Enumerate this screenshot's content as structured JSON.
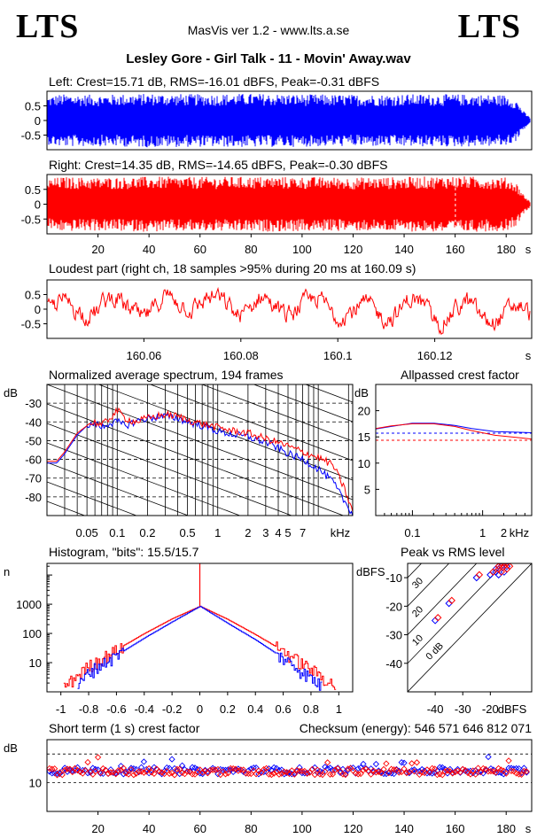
{
  "header": {
    "logo_left": "LTS",
    "logo_right": "LTS",
    "app_title": "MasVis ver 1.2 - www.lts.a.se",
    "file_title": "Lesley Gore - Girl Talk - 11 - Movin' Away.wav"
  },
  "colors": {
    "left": "#0000ff",
    "right": "#ff0000",
    "axis": "#000000",
    "grid": "#000000"
  },
  "chart_data": [
    {
      "id": "left-waveform",
      "type": "area",
      "title": "Left: Crest=15.71 dB, RMS=-16.01 dBFS, Peak=-0.31 dBFS",
      "ylim": [
        -1,
        1
      ],
      "xlim": [
        0,
        190
      ],
      "yticks": [
        "0.5",
        "0",
        "-0.5"
      ],
      "ytick_values": [
        0.5,
        0,
        -0.5
      ],
      "series": [
        {
          "envelope": [
            [
              0,
              0.82
            ],
            [
              5,
              0.9
            ],
            [
              20,
              0.88
            ],
            [
              40,
              0.92
            ],
            [
              60,
              0.9
            ],
            [
              80,
              0.92
            ],
            [
              100,
              0.9
            ],
            [
              120,
              0.88
            ],
            [
              140,
              0.9
            ],
            [
              160,
              0.9
            ],
            [
              180,
              0.88
            ],
            [
              184,
              0.7
            ],
            [
              187,
              0.3
            ],
            [
              190,
              0.05
            ]
          ]
        }
      ]
    },
    {
      "id": "right-waveform",
      "type": "area",
      "title": "Right: Crest=14.35 dB, RMS=-14.65 dBFS, Peak=-0.30 dBFS",
      "ylim": [
        -1,
        1
      ],
      "xlim": [
        0,
        190
      ],
      "yticks": [
        "0.5",
        "0",
        "-0.5"
      ],
      "ytick_values": [
        0.5,
        0,
        -0.5
      ],
      "xticks": [
        "20",
        "40",
        "60",
        "80",
        "100",
        "120",
        "140",
        "160",
        "180"
      ],
      "xtick_values": [
        20,
        40,
        60,
        80,
        100,
        120,
        140,
        160,
        180
      ],
      "xunit": "s",
      "series": [
        {
          "envelope": [
            [
              0,
              0.82
            ],
            [
              5,
              0.92
            ],
            [
              20,
              0.9
            ],
            [
              40,
              0.93
            ],
            [
              60,
              0.92
            ],
            [
              80,
              0.93
            ],
            [
              100,
              0.92
            ],
            [
              120,
              0.9
            ],
            [
              140,
              0.92
            ],
            [
              160,
              0.95
            ],
            [
              180,
              0.9
            ],
            [
              184,
              0.72
            ],
            [
              187,
              0.3
            ],
            [
              190,
              0.05
            ]
          ]
        }
      ]
    },
    {
      "id": "loudest-part",
      "type": "line",
      "title": "Loudest part (right ch, 18 samples >95% during 20 ms at 160.09 s)",
      "ylim": [
        -1,
        1
      ],
      "xlim": [
        160.04,
        160.14
      ],
      "yticks": [
        "0.5",
        "0",
        "-0.5"
      ],
      "ytick_values": [
        0.5,
        0,
        -0.5
      ],
      "xticks": [
        "160.06",
        "160.08",
        "160.1",
        "160.12"
      ],
      "xtick_values": [
        160.06,
        160.08,
        160.1,
        160.12
      ],
      "xunit": "s"
    },
    {
      "id": "spectrum",
      "type": "line",
      "title": "Normalized average spectrum, 194 frames",
      "ylabel": "dB",
      "xlabel": "kHz",
      "xscale": "log",
      "xlim": [
        0.02,
        22
      ],
      "ylim": [
        -90,
        -20
      ],
      "yticks": [
        "-30",
        "-40",
        "-50",
        "-60",
        "-70",
        "-80"
      ],
      "ytick_values": [
        -30,
        -40,
        -50,
        -60,
        -70,
        -80
      ],
      "xticks": [
        "0.05",
        "0.1",
        "0.2",
        "0.5",
        "1",
        "2",
        "3",
        "4",
        "5",
        "7"
      ],
      "xtick_values": [
        0.05,
        0.1,
        0.2,
        0.5,
        1,
        2,
        3,
        4,
        5,
        7
      ],
      "series": [
        {
          "channel": "left",
          "points": [
            [
              0.02,
              -62
            ],
            [
              0.025,
              -62
            ],
            [
              0.03,
              -57
            ],
            [
              0.04,
              -47
            ],
            [
              0.05,
              -42
            ],
            [
              0.06,
              -41
            ],
            [
              0.07,
              -43
            ],
            [
              0.08,
              -41
            ],
            [
              0.1,
              -40
            ],
            [
              0.12,
              -42
            ],
            [
              0.15,
              -40
            ],
            [
              0.2,
              -38
            ],
            [
              0.3,
              -37
            ],
            [
              0.4,
              -38
            ],
            [
              0.5,
              -40
            ],
            [
              0.7,
              -42
            ],
            [
              1,
              -45
            ],
            [
              1.5,
              -47
            ],
            [
              2,
              -48
            ],
            [
              3,
              -51
            ],
            [
              4,
              -54
            ],
            [
              5,
              -57
            ],
            [
              7,
              -60
            ],
            [
              10,
              -65
            ],
            [
              14,
              -72
            ],
            [
              18,
              -82
            ],
            [
              22,
              -89
            ]
          ]
        },
        {
          "channel": "right",
          "points": [
            [
              0.02,
              -61
            ],
            [
              0.025,
              -61
            ],
            [
              0.03,
              -56
            ],
            [
              0.04,
              -46
            ],
            [
              0.05,
              -42
            ],
            [
              0.06,
              -40
            ],
            [
              0.07,
              -42
            ],
            [
              0.08,
              -39
            ],
            [
              0.1,
              -34
            ],
            [
              0.12,
              -38
            ],
            [
              0.15,
              -40
            ],
            [
              0.2,
              -38
            ],
            [
              0.3,
              -36
            ],
            [
              0.4,
              -37
            ],
            [
              0.5,
              -39
            ],
            [
              0.7,
              -41
            ],
            [
              1,
              -43
            ],
            [
              1.5,
              -45
            ],
            [
              2,
              -46
            ],
            [
              3,
              -49
            ],
            [
              4,
              -51
            ],
            [
              5,
              -53
            ],
            [
              7,
              -56
            ],
            [
              10,
              -59
            ],
            [
              14,
              -63
            ],
            [
              18,
              -75
            ],
            [
              22,
              -88
            ]
          ]
        }
      ]
    },
    {
      "id": "allpassed-crest",
      "type": "line",
      "title": "Allpassed crest factor",
      "ylabel": "dB",
      "xlabel": "kHz",
      "xscale": "log",
      "xlim": [
        0.03,
        5
      ],
      "ylim": [
        0,
        25
      ],
      "yticks": [
        "20",
        "15",
        "10",
        "5"
      ],
      "ytick_values": [
        20,
        15,
        10,
        5
      ],
      "xticks": [
        "0.1",
        "1",
        "2"
      ],
      "xtick_values": [
        0.1,
        1,
        2
      ],
      "reference_lines": [
        {
          "channel": "left",
          "value": 15.7
        },
        {
          "channel": "right",
          "value": 14.35
        }
      ],
      "series": [
        {
          "channel": "left",
          "points": [
            [
              0.03,
              16.5
            ],
            [
              0.05,
              17
            ],
            [
              0.1,
              17.6
            ],
            [
              0.2,
              17.6
            ],
            [
              0.4,
              17.2
            ],
            [
              0.7,
              16.6
            ],
            [
              1.5,
              16
            ],
            [
              3,
              15.9
            ],
            [
              5,
              15.8
            ]
          ]
        },
        {
          "channel": "right",
          "points": [
            [
              0.03,
              16.6
            ],
            [
              0.05,
              17.1
            ],
            [
              0.1,
              17.5
            ],
            [
              0.2,
              17.5
            ],
            [
              0.4,
              17
            ],
            [
              0.7,
              16.2
            ],
            [
              1.5,
              15.3
            ],
            [
              3,
              14.9
            ],
            [
              5,
              14.6
            ]
          ]
        }
      ]
    },
    {
      "id": "histogram",
      "type": "line",
      "title": "Histogram, \"bits\": 15.5/15.7",
      "ylabel": "n",
      "yscale": "log",
      "xlim": [
        -1.1,
        1.1
      ],
      "ylim": [
        1,
        25000
      ],
      "yticks": [
        "1000",
        "100",
        "10"
      ],
      "ytick_values": [
        1000,
        100,
        10
      ],
      "xticks": [
        "-1",
        "-0.8",
        "-0.6",
        "-0.4",
        "-0.2",
        "0",
        "0.2",
        "0.4",
        "0.6",
        "0.8",
        "1"
      ],
      "xtick_values": [
        -1,
        -0.8,
        -0.6,
        -0.4,
        -0.2,
        0,
        0.2,
        0.4,
        0.6,
        0.8,
        1
      ],
      "series": [
        {
          "channel": "left",
          "points": [
            [
              -0.88,
              1.5
            ],
            [
              -0.8,
              5
            ],
            [
              -0.6,
              18
            ],
            [
              -0.4,
              70
            ],
            [
              -0.2,
              250
            ],
            [
              0,
              850
            ],
            [
              0.2,
              220
            ],
            [
              0.4,
              60
            ],
            [
              0.6,
              14
            ],
            [
              0.8,
              3
            ],
            [
              0.88,
              1.5
            ]
          ]
        },
        {
          "channel": "right",
          "points": [
            [
              -0.98,
              1.5
            ],
            [
              -0.8,
              8
            ],
            [
              -0.6,
              28
            ],
            [
              -0.4,
              100
            ],
            [
              -0.2,
              320
            ],
            [
              0,
              850
            ],
            [
              0.2,
              300
            ],
            [
              0.4,
              90
            ],
            [
              0.6,
              25
            ],
            [
              0.8,
              6
            ],
            [
              0.98,
              1.5
            ]
          ]
        }
      ]
    },
    {
      "id": "peak-vs-rms",
      "type": "scatter",
      "title": "Peak vs RMS level",
      "ylabel": "dBFS",
      "xlabel": "dBFS",
      "xlim": [
        -50,
        -5
      ],
      "ylim": [
        -50,
        -5
      ],
      "yticks": [
        "-10",
        "-20",
        "-30",
        "-40"
      ],
      "ytick_values": [
        -10,
        -20,
        -30,
        -40
      ],
      "xticks": [
        "-40",
        "-30",
        "-20"
      ],
      "xtick_values": [
        -40,
        -30,
        -20
      ],
      "diagonal_labels": [
        "40",
        "30",
        "20",
        "10",
        "0 dB"
      ],
      "diagonal_values": [
        40,
        30,
        20,
        10,
        0
      ],
      "series": [
        {
          "channel": "left",
          "points": [
            [
              -40,
              -25
            ],
            [
              -35,
              -19
            ],
            [
              -25,
              -10
            ],
            [
              -20,
              -9
            ],
            [
              -18,
              -7
            ],
            [
              -17,
              -6
            ],
            [
              -16,
              -6
            ],
            [
              -15,
              -5
            ],
            [
              -14,
              -6
            ],
            [
              -17,
              -9
            ],
            [
              -15,
              -8
            ],
            [
              -16,
              -5
            ],
            [
              -18,
              -8
            ]
          ]
        },
        {
          "channel": "right",
          "points": [
            [
              -39,
              -24
            ],
            [
              -34,
              -18
            ],
            [
              -24,
              -9
            ],
            [
              -19,
              -8
            ],
            [
              -17,
              -6
            ],
            [
              -16,
              -5
            ],
            [
              -15,
              -6
            ],
            [
              -14,
              -5
            ],
            [
              -13,
              -6
            ],
            [
              -16,
              -8
            ],
            [
              -14,
              -7
            ],
            [
              -15,
              -5
            ],
            [
              -17,
              -7
            ]
          ]
        }
      ]
    },
    {
      "id": "short-term-crest",
      "type": "scatter",
      "title": "Short term (1 s) crest factor",
      "ylabel": "dB",
      "xlim": [
        0,
        190
      ],
      "ylim": [
        0,
        25
      ],
      "yticks": [
        "10"
      ],
      "ytick_values": [
        10
      ],
      "dashed_lines": [
        10,
        20
      ],
      "xticks": [
        "20",
        "40",
        "60",
        "80",
        "100",
        "120",
        "140",
        "160",
        "180"
      ],
      "xtick_values": [
        20,
        40,
        60,
        80,
        100,
        120,
        140,
        160,
        180
      ],
      "xunit": "s",
      "annotation": "Checksum (energy):  546 571 646 812 071"
    }
  ]
}
